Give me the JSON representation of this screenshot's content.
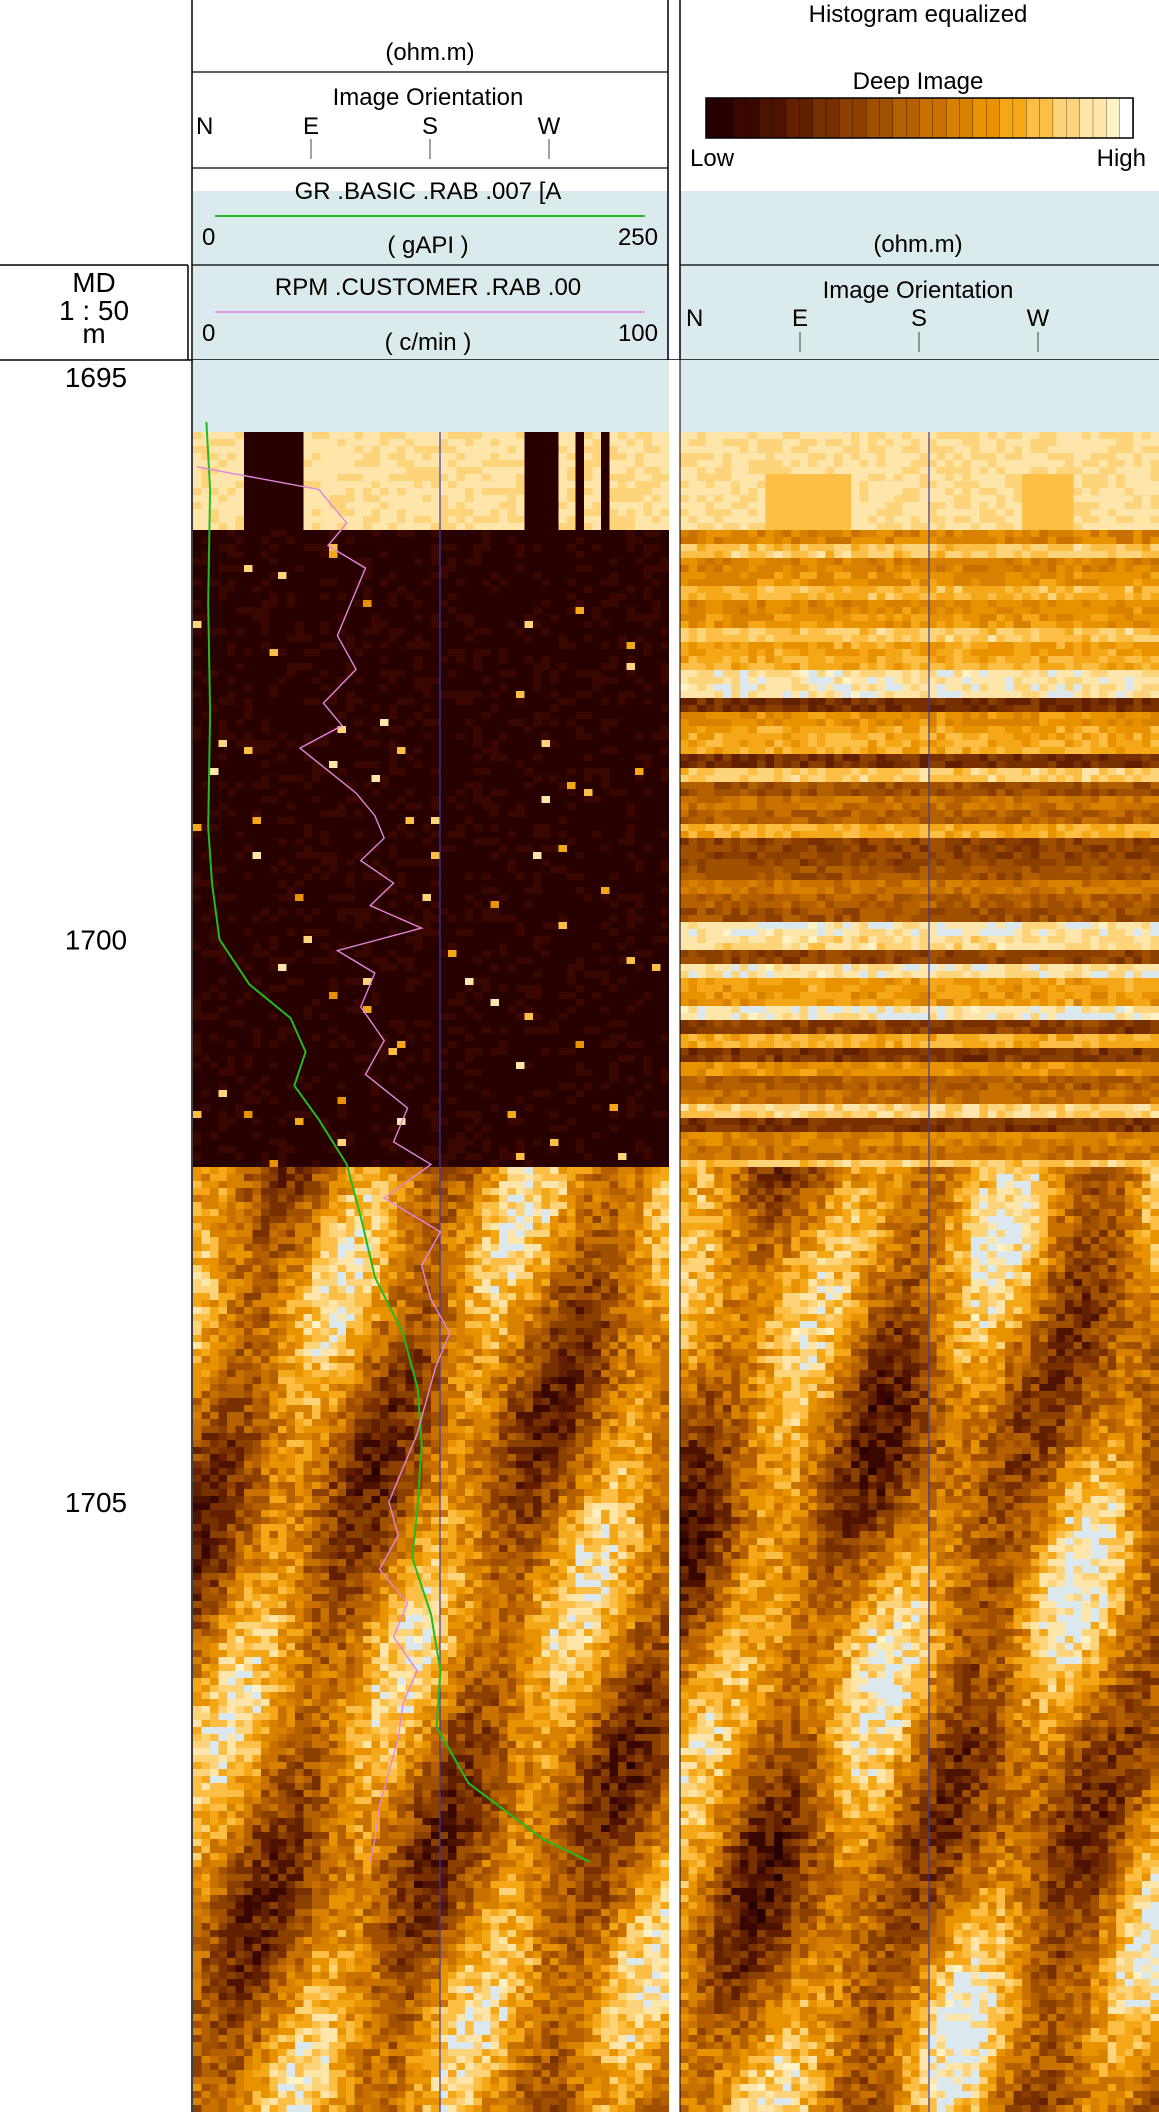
{
  "chart_data": {
    "type": "well-log",
    "depth_track": {
      "label": "MD",
      "scale": "1 : 50",
      "unit": "m",
      "range": [
        1694.85,
        1708.2
      ],
      "ticks": [
        1695,
        1700,
        1705
      ]
    },
    "track1": {
      "header": {
        "unit_top": "(ohm.m)",
        "orientation_title": "Image Orientation",
        "orientation_labels": [
          "N",
          "E",
          "S",
          "W"
        ]
      },
      "curves": [
        {
          "name": "GR .BASIC .RAB .007 [A",
          "unit": "( gAPI )",
          "min": 0,
          "max": 250,
          "min_label": "0",
          "max_label": "250",
          "color": "#22bb22",
          "depths": [
            1695.4,
            1696.0,
            1697.0,
            1698.0,
            1699.0,
            1699.5,
            1700.0,
            1700.4,
            1700.7,
            1701.0,
            1701.3,
            1701.6,
            1702.0,
            1702.5,
            1703.0,
            1703.5,
            1704.0,
            1704.5,
            1705.0,
            1705.5,
            1706.0,
            1706.5,
            1707.0,
            1707.5,
            1708.0,
            1708.2
          ],
          "values": [
            5,
            7,
            6,
            7,
            6,
            8,
            12,
            28,
            50,
            58,
            52,
            65,
            80,
            88,
            95,
            110,
            118,
            120,
            118,
            115,
            125,
            130,
            128,
            145,
            185,
            210
          ]
        },
        {
          "name": "RPM .CUSTOMER .RAB .00",
          "unit": "( c/min )",
          "min": 0,
          "max": 100,
          "min_label": "0",
          "max_label": "100",
          "color": "#dd88dd",
          "depths": [
            1695.8,
            1696.0,
            1696.3,
            1696.5,
            1696.7,
            1697.0,
            1697.3,
            1697.6,
            1697.9,
            1698.1,
            1698.3,
            1698.5,
            1698.7,
            1698.9,
            1699.1,
            1699.3,
            1699.5,
            1699.7,
            1699.9,
            1700.1,
            1700.3,
            1700.6,
            1700.9,
            1701.2,
            1701.5,
            1701.8,
            1702.0,
            1702.3,
            1702.6,
            1702.9,
            1703.2,
            1703.5,
            1703.8,
            1704.1,
            1704.4,
            1704.7,
            1705.0,
            1705.3,
            1705.6,
            1705.9,
            1706.2,
            1706.5,
            1706.8,
            1707.1,
            1707.4,
            1707.7,
            1708.0,
            1708.2
          ],
          "values": [
            0,
            26,
            32,
            28,
            36,
            33,
            30,
            34,
            27,
            31,
            22,
            28,
            34,
            38,
            40,
            35,
            42,
            37,
            48,
            30,
            38,
            35,
            40,
            36,
            45,
            42,
            50,
            40,
            52,
            48,
            50,
            54,
            51,
            49,
            47,
            44,
            41,
            43,
            39,
            45,
            42,
            47,
            44,
            43,
            41,
            39,
            38,
            37
          ]
        }
      ],
      "secondary_curve_label": "RPM .CUSTOMER .RAB .00",
      "image": "Shallow resistivity image",
      "south_line_color": "#3a3aa8"
    },
    "track2": {
      "header": {
        "title": "Histogram equalized",
        "image_title": "Deep Image",
        "legend_low": "Low",
        "legend_high": "High",
        "unit": "(ohm.m)",
        "orientation_title": "Image Orientation",
        "orientation_labels": [
          "N",
          "E",
          "S",
          "W"
        ]
      },
      "image": "Deep resistivity image"
    },
    "palette": [
      "#280000",
      "#3a0600",
      "#4e1200",
      "#622000",
      "#783000",
      "#8c4000",
      "#a05000",
      "#b46000",
      "#c87000",
      "#d88000",
      "#e89200",
      "#f4a818",
      "#fcbe44",
      "#fed47a",
      "#fee6aa",
      "#fff2c4",
      "#dbe8ee"
    ],
    "colors": {
      "header_fill": "#dbeaec",
      "separator": "#ffffff"
    }
  }
}
